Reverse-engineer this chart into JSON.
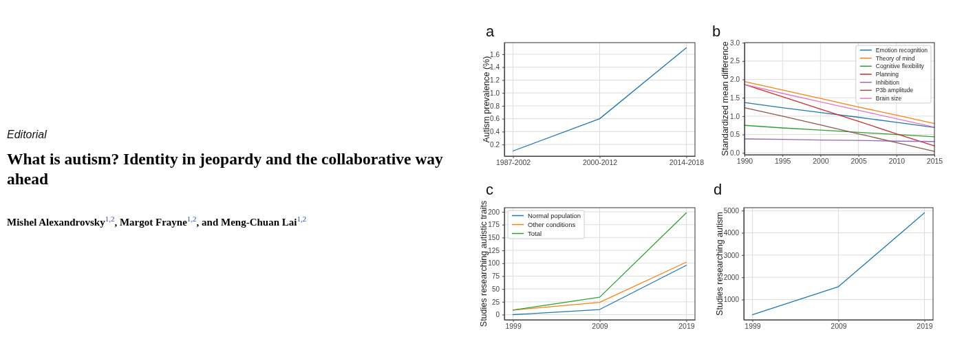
{
  "chart_data": [
    {
      "type": "other",
      "title": "What is autism? Identity in jeopardy and the collaborative way ahead",
      "annotations": [
        "Editorial",
        "Mishel Alexandrovsky$^{1,2}$, Margot Frayne$^{1,2}$, and Meng-Chuan Lai$^{1,2}$"
      ]
    },
    {
      "type": "line",
      "title": "a",
      "ylabel": "Autism prevalence (%)",
      "categories": [
        "1987-2002",
        "2000-2012",
        "2014-2018"
      ],
      "values": [
        0.1,
        0.6,
        1.7
      ],
      "color": "#1f77b4",
      "ylim": [
        0.02,
        1.78
      ],
      "yticks": [
        0.2,
        0.4,
        0.6,
        0.8,
        {
          "value": 1,
          "label": "1.0"
        },
        1.2,
        1.4,
        1.6
      ],
      "grid": true
    },
    {
      "type": "line",
      "title": "b",
      "ylabel": "Standardized mean difference",
      "x": [
        1990,
        1995,
        2000,
        2005,
        2010,
        2015
      ],
      "series": [
        {
          "name": "Emotion recognition",
          "color": "#1f77b4",
          "values": [
            1.37,
            1.23,
            1.1,
            0.97,
            0.83,
            0.69
          ]
        },
        {
          "name": "Theory of mind",
          "color": "#ff7f0e",
          "values": [
            1.94,
            1.71,
            1.48,
            1.25,
            1.03,
            0.8
          ]
        },
        {
          "name": "Cognitive flexibility",
          "color": "#2ca02c",
          "values": [
            0.75,
            0.68,
            0.62,
            0.56,
            0.5,
            0.44
          ]
        },
        {
          "name": "Planning",
          "color": "#d62728",
          "values": [
            1.86,
            1.53,
            1.19,
            0.86,
            0.52,
            0.19
          ]
        },
        {
          "name": "Inhibition",
          "color": "#9467bd",
          "values": [
            0.38,
            0.37,
            0.35,
            0.34,
            0.32,
            0.31
          ]
        },
        {
          "name": "P3b amplitude",
          "color": "#8c564b",
          "values": [
            1.23,
            1.0,
            0.76,
            0.52,
            0.28,
            0.04
          ]
        },
        {
          "name": "Brain size",
          "color": "#e377c2",
          "values": [
            1.86,
            1.62,
            1.39,
            1.16,
            0.93,
            0.7
          ]
        }
      ],
      "xlim": [
        1990,
        2015
      ],
      "xticks": [
        1990,
        1995,
        2000,
        2005,
        2010,
        2015
      ],
      "ylim": [
        -0.05,
        3
      ],
      "yticks": [
        {
          "value": 0,
          "label": "0.0"
        },
        0.5,
        {
          "value": 1,
          "label": "1.0"
        },
        1.5,
        {
          "value": 2,
          "label": "2.0"
        },
        2.5,
        {
          "value": 3,
          "label": "3.0"
        }
      ],
      "grid": true,
      "legend": "top right"
    },
    {
      "type": "line",
      "title": "c",
      "ylabel": "Studies researching autistic traits",
      "x": [
        1999,
        2009,
        2019
      ],
      "series": [
        {
          "name": "Normal population",
          "color": "#1f77b4",
          "values": [
            0,
            10,
            96
          ]
        },
        {
          "name": "Other conditions",
          "color": "#ff7f0e",
          "values": [
            9,
            24,
            102
          ]
        },
        {
          "name": "Total",
          "color": "#2ca02c",
          "values": [
            9,
            34,
            198
          ]
        }
      ],
      "xlim": [
        1998,
        2020
      ],
      "xticks": [
        1999,
        2009,
        2019
      ],
      "ylim": [
        -10,
        208
      ],
      "yticks": [
        0,
        25,
        50,
        75,
        100,
        125,
        150,
        175,
        200
      ],
      "grid": true,
      "legend": "top left"
    },
    {
      "type": "line",
      "title": "d",
      "ylabel": "Studies researching autism",
      "x": [
        1999,
        2009,
        2019
      ],
      "values": [
        320,
        1580,
        4900
      ],
      "color": "#1f77b4",
      "xlim": [
        1998,
        2020
      ],
      "xticks": [
        1999,
        2009,
        2019
      ],
      "ylim": [
        90,
        5130
      ],
      "yticks": [
        1000,
        2000,
        3000,
        4000,
        5000
      ],
      "grid": true
    }
  ]
}
